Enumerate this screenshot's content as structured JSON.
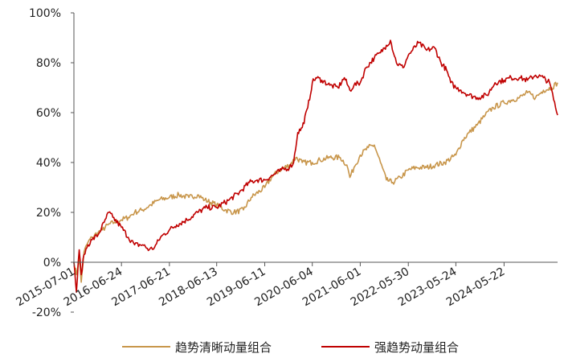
{
  "chart_data": {
    "type": "line",
    "title": "",
    "xlabel": "",
    "ylabel": "",
    "ylim": [
      -0.2,
      1.0
    ],
    "y_ticks": [
      {
        "value": -0.2,
        "label": "-20%"
      },
      {
        "value": 0.0,
        "label": "0%"
      },
      {
        "value": 0.2,
        "label": "20%"
      },
      {
        "value": 0.4,
        "label": "40%"
      },
      {
        "value": 0.6,
        "label": "60%"
      },
      {
        "value": 0.8,
        "label": "80%"
      },
      {
        "value": 1.0,
        "label": "100%"
      }
    ],
    "x_start": "2015-07-01",
    "x_end": "2025-06-30",
    "x_ticks": [
      "2015-07-01",
      "2016-06-24",
      "2017-06-21",
      "2018-06-13",
      "2019-06-11",
      "2020-06-04",
      "2021-06-01",
      "2022-05-30",
      "2023-05-24",
      "2024-05-22"
    ],
    "grid": false,
    "legend_position": "bottom",
    "series": [
      {
        "name": "趋势清晰动量组合",
        "color": "#C8964B",
        "points": [
          [
            "2015-07-01",
            0.0
          ],
          [
            "2015-07-20",
            -0.05
          ],
          [
            "2015-08-10",
            0.02
          ],
          [
            "2015-08-25",
            -0.08
          ],
          [
            "2015-09-15",
            0.04
          ],
          [
            "2015-10-15",
            0.08
          ],
          [
            "2015-11-15",
            0.1
          ],
          [
            "2015-12-31",
            0.12
          ],
          [
            "2016-02-01",
            0.13
          ],
          [
            "2016-03-15",
            0.15
          ],
          [
            "2016-05-01",
            0.16
          ],
          [
            "2016-06-24",
            0.17
          ],
          [
            "2016-08-15",
            0.18
          ],
          [
            "2016-10-01",
            0.2
          ],
          [
            "2016-12-01",
            0.21
          ],
          [
            "2017-02-01",
            0.23
          ],
          [
            "2017-04-01",
            0.25
          ],
          [
            "2017-06-21",
            0.26
          ],
          [
            "2017-09-01",
            0.27
          ],
          [
            "2017-11-15",
            0.26
          ],
          [
            "2018-01-20",
            0.27
          ],
          [
            "2018-03-15",
            0.25
          ],
          [
            "2018-06-13",
            0.23
          ],
          [
            "2018-08-15",
            0.21
          ],
          [
            "2018-10-20",
            0.2
          ],
          [
            "2019-01-01",
            0.21
          ],
          [
            "2019-03-01",
            0.26
          ],
          [
            "2019-06-11",
            0.3
          ],
          [
            "2019-08-01",
            0.34
          ],
          [
            "2019-10-01",
            0.37
          ],
          [
            "2019-12-15",
            0.39
          ],
          [
            "2020-02-01",
            0.42
          ],
          [
            "2020-03-20",
            0.4
          ],
          [
            "2020-06-04",
            0.4
          ],
          [
            "2020-08-01",
            0.41
          ],
          [
            "2020-10-15",
            0.42
          ],
          [
            "2021-01-01",
            0.42
          ],
          [
            "2021-02-20",
            0.39
          ],
          [
            "2021-03-15",
            0.34
          ],
          [
            "2021-04-15",
            0.38
          ],
          [
            "2021-06-01",
            0.43
          ],
          [
            "2021-08-01",
            0.46
          ],
          [
            "2021-09-15",
            0.47
          ],
          [
            "2021-11-01",
            0.4
          ],
          [
            "2021-12-15",
            0.33
          ],
          [
            "2022-02-01",
            0.32
          ],
          [
            "2022-04-01",
            0.34
          ],
          [
            "2022-05-30",
            0.37
          ],
          [
            "2022-08-01",
            0.38
          ],
          [
            "2022-10-15",
            0.38
          ],
          [
            "2022-12-20",
            0.39
          ],
          [
            "2023-03-01",
            0.4
          ],
          [
            "2023-05-24",
            0.43
          ],
          [
            "2023-07-15",
            0.49
          ],
          [
            "2023-09-01",
            0.52
          ],
          [
            "2023-11-01",
            0.55
          ],
          [
            "2024-01-01",
            0.59
          ],
          [
            "2024-03-01",
            0.62
          ],
          [
            "2024-05-22",
            0.64
          ],
          [
            "2024-07-15",
            0.65
          ],
          [
            "2024-09-15",
            0.66
          ],
          [
            "2024-11-15",
            0.68
          ],
          [
            "2025-01-15",
            0.66
          ],
          [
            "2025-03-15",
            0.69
          ],
          [
            "2025-05-15",
            0.7
          ],
          [
            "2025-06-30",
            0.72
          ]
        ]
      },
      {
        "name": "强趋势动量组合",
        "color": "#C00000",
        "points": [
          [
            "2015-07-01",
            0.0
          ],
          [
            "2015-07-20",
            -0.12
          ],
          [
            "2015-08-10",
            0.05
          ],
          [
            "2015-08-25",
            -0.05
          ],
          [
            "2015-09-15",
            0.03
          ],
          [
            "2015-10-15",
            0.07
          ],
          [
            "2015-11-15",
            0.09
          ],
          [
            "2015-12-31",
            0.11
          ],
          [
            "2016-02-15",
            0.16
          ],
          [
            "2016-03-20",
            0.2
          ],
          [
            "2016-04-20",
            0.18
          ],
          [
            "2016-06-24",
            0.14
          ],
          [
            "2016-08-15",
            0.1
          ],
          [
            "2016-10-01",
            0.07
          ],
          [
            "2016-12-01",
            0.07
          ],
          [
            "2017-01-20",
            0.05
          ],
          [
            "2017-03-01",
            0.06
          ],
          [
            "2017-04-15",
            0.1
          ],
          [
            "2017-06-21",
            0.13
          ],
          [
            "2017-08-15",
            0.15
          ],
          [
            "2017-11-01",
            0.17
          ],
          [
            "2018-01-20",
            0.2
          ],
          [
            "2018-04-01",
            0.22
          ],
          [
            "2018-06-13",
            0.22
          ],
          [
            "2018-09-15",
            0.25
          ],
          [
            "2018-12-01",
            0.28
          ],
          [
            "2019-02-15",
            0.32
          ],
          [
            "2019-04-15",
            0.33
          ],
          [
            "2019-06-11",
            0.33
          ],
          [
            "2019-08-15",
            0.35
          ],
          [
            "2019-10-15",
            0.37
          ],
          [
            "2019-12-15",
            0.38
          ],
          [
            "2020-01-15",
            0.4
          ],
          [
            "2020-02-15",
            0.52
          ],
          [
            "2020-03-20",
            0.54
          ],
          [
            "2020-05-01",
            0.62
          ],
          [
            "2020-06-04",
            0.72
          ],
          [
            "2020-07-01",
            0.74
          ],
          [
            "2020-08-15",
            0.73
          ],
          [
            "2020-10-15",
            0.71
          ],
          [
            "2020-12-15",
            0.7
          ],
          [
            "2021-02-01",
            0.74
          ],
          [
            "2021-03-15",
            0.69
          ],
          [
            "2021-04-15",
            0.71
          ],
          [
            "2021-06-01",
            0.72
          ],
          [
            "2021-07-15",
            0.78
          ],
          [
            "2021-09-15",
            0.82
          ],
          [
            "2021-11-01",
            0.84
          ],
          [
            "2021-12-15",
            0.87
          ],
          [
            "2022-01-15",
            0.89
          ],
          [
            "2022-03-01",
            0.8
          ],
          [
            "2022-04-20",
            0.78
          ],
          [
            "2022-05-30",
            0.83
          ],
          [
            "2022-07-01",
            0.85
          ],
          [
            "2022-08-15",
            0.88
          ],
          [
            "2022-10-15",
            0.85
          ],
          [
            "2022-12-15",
            0.86
          ],
          [
            "2023-02-01",
            0.8
          ],
          [
            "2023-03-15",
            0.77
          ],
          [
            "2023-04-15",
            0.72
          ],
          [
            "2023-05-24",
            0.7
          ],
          [
            "2023-07-01",
            0.69
          ],
          [
            "2023-09-01",
            0.67
          ],
          [
            "2023-11-01",
            0.66
          ],
          [
            "2024-01-15",
            0.67
          ],
          [
            "2024-03-15",
            0.72
          ],
          [
            "2024-05-22",
            0.73
          ],
          [
            "2024-07-15",
            0.74
          ],
          [
            "2024-09-15",
            0.74
          ],
          [
            "2024-11-15",
            0.73
          ],
          [
            "2025-01-15",
            0.75
          ],
          [
            "2025-03-15",
            0.74
          ],
          [
            "2025-05-01",
            0.72
          ],
          [
            "2025-06-15",
            0.62
          ],
          [
            "2025-06-30",
            0.59
          ]
        ]
      }
    ]
  }
}
